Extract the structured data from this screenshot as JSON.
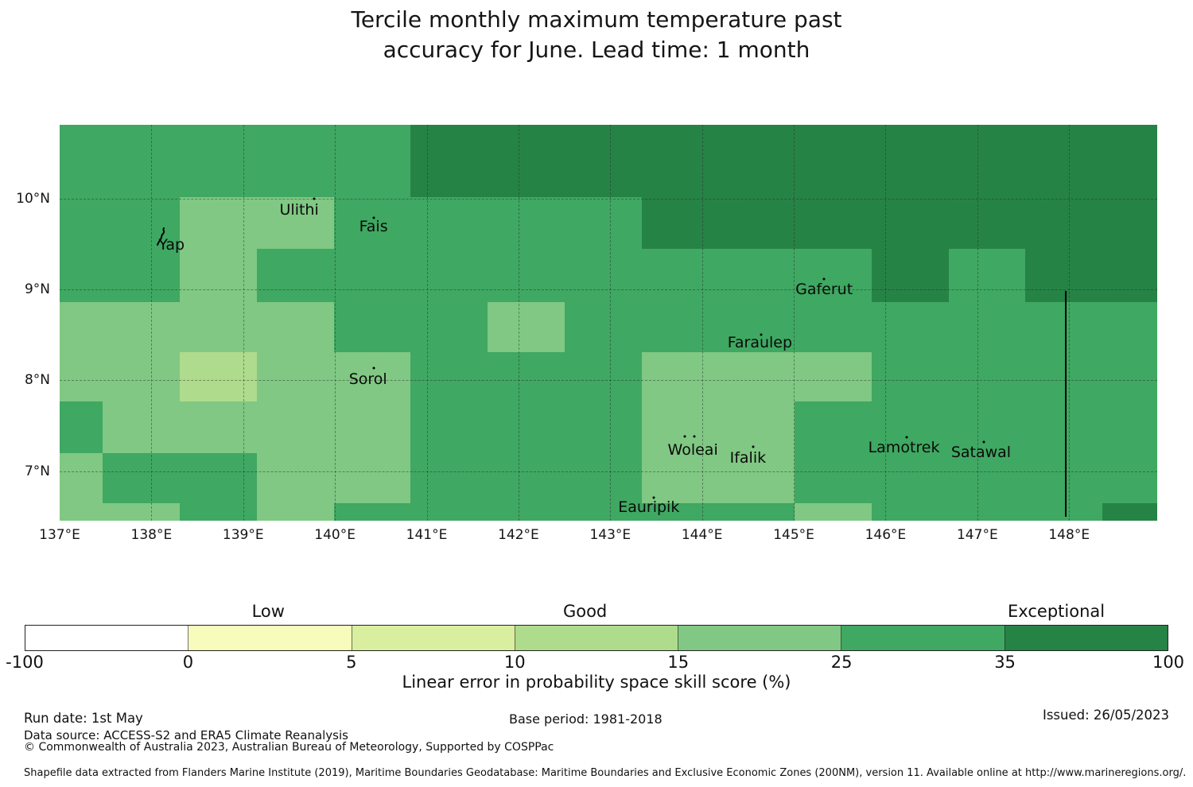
{
  "title": {
    "line1": "Tercile monthly maximum temperature past",
    "line2": "accuracy for June. Lead time: 1 month"
  },
  "chart_data": {
    "type": "heatmap",
    "title": "Tercile monthly maximum temperature past accuracy for June. Lead time: 1 month",
    "variable": "Linear error in probability space skill score (%)",
    "lon_range": [
      137.0,
      148.96
    ],
    "lat_range": [
      6.455,
      10.81
    ],
    "x_ticks": [
      {
        "label": "137°E",
        "lon": 137
      },
      {
        "label": "138°E",
        "lon": 138
      },
      {
        "label": "139°E",
        "lon": 139
      },
      {
        "label": "140°E",
        "lon": 140
      },
      {
        "label": "141°E",
        "lon": 141
      },
      {
        "label": "142°E",
        "lon": 142
      },
      {
        "label": "143°E",
        "lon": 143
      },
      {
        "label": "144°E",
        "lon": 144
      },
      {
        "label": "145°E",
        "lon": 145
      },
      {
        "label": "146°E",
        "lon": 146
      },
      {
        "label": "147°E",
        "lon": 147
      },
      {
        "label": "148°E",
        "lon": 148
      }
    ],
    "y_ticks": [
      {
        "label": "10°N",
        "lat": 10
      },
      {
        "label": "9°N",
        "lat": 9
      },
      {
        "label": "8°N",
        "lat": 8
      },
      {
        "label": "7°N",
        "lat": 7
      }
    ],
    "lon_gridlines": [
      138,
      139,
      140,
      141,
      142,
      143,
      144,
      145,
      146,
      147,
      148
    ],
    "lat_gridlines": [
      7,
      8,
      9,
      10
    ],
    "col_bounds_lon": [
      137.0,
      137.47,
      138.31,
      139.15,
      139.99,
      140.82,
      141.66,
      142.5,
      143.34,
      144.17,
      145.01,
      145.85,
      146.69,
      147.52,
      148.36,
      148.96
    ],
    "row_bounds_lat": [
      10.81,
      10.015,
      9.446,
      8.86,
      8.31,
      7.767,
      7.199,
      6.648,
      6.455
    ],
    "color_key": {
      "P": "#afdb8d",
      "L": "#80c883",
      "M": "#3fa862",
      "D": "#268346"
    },
    "color_key_meaning": {
      "P": "10-15",
      "L": "15-25",
      "M": "25-35",
      "D": "35-100"
    },
    "cells_by_row": [
      "MMMMMDDDDDDDDDD",
      "MMLLMMMMDDDDDDD",
      "MMLMMMMMMMMDMDD",
      "LLLLMMLMMMMMMMM",
      "LLPLLMMMLLLMMMM",
      "MLLLLMMMLLMMMMM",
      "LMMLLMMMLLMMMMM",
      "LLMLMMMMMMLMMMD"
    ],
    "places": [
      {
        "name": "Yap",
        "lon": 138.22,
        "lat": 9.49,
        "marker": "island",
        "dots": []
      },
      {
        "name": "Ulithi",
        "lon": 139.61,
        "lat": 9.87,
        "dots": [
          [
            139.77,
            10.0
          ]
        ]
      },
      {
        "name": "Fais",
        "lon": 140.42,
        "lat": 9.69,
        "dots": [
          [
            140.42,
            9.79
          ]
        ]
      },
      {
        "name": "Sorol",
        "lon": 140.36,
        "lat": 8.01,
        "dots": [
          [
            140.42,
            8.13
          ]
        ]
      },
      {
        "name": "Gaferut",
        "lon": 145.33,
        "lat": 9.0,
        "dots": [
          [
            145.33,
            9.11
          ]
        ]
      },
      {
        "name": "Faraulep",
        "lon": 144.63,
        "lat": 8.41,
        "dots": [
          [
            144.64,
            8.5
          ]
        ]
      },
      {
        "name": "Woleai",
        "lon": 143.9,
        "lat": 7.23,
        "dots": [
          [
            143.81,
            7.38
          ],
          [
            143.92,
            7.38
          ]
        ]
      },
      {
        "name": "Ifalik",
        "lon": 144.5,
        "lat": 7.15,
        "dots": [
          [
            144.56,
            7.27
          ]
        ]
      },
      {
        "name": "Lamotrek",
        "lon": 146.2,
        "lat": 7.26,
        "dots": [
          [
            146.23,
            7.37
          ]
        ]
      },
      {
        "name": "Satawal",
        "lon": 147.04,
        "lat": 7.21,
        "dots": [
          [
            147.07,
            7.32
          ]
        ]
      },
      {
        "name": "Eauripik",
        "lon": 143.42,
        "lat": 6.6,
        "dots": [
          [
            143.47,
            6.71
          ]
        ]
      }
    ],
    "eez_line": {
      "lon": 147.96,
      "lat_from": 8.98,
      "lat_to": 6.5
    }
  },
  "colorbar": {
    "categories": [
      {
        "label": "Low",
        "pos_pct": 21.3
      },
      {
        "label": "Good",
        "pos_pct": 49.0
      },
      {
        "label": "Exceptional",
        "pos_pct": 90.2
      }
    ],
    "segments": [
      {
        "range": "-100 to 0",
        "color": "#ffffff"
      },
      {
        "range": "0 to 5",
        "color": "#f7fbbb"
      },
      {
        "range": "5 to 10",
        "color": "#d9ee9f"
      },
      {
        "range": "10 to 15",
        "color": "#afdb8d"
      },
      {
        "range": "15 to 25",
        "color": "#80c883"
      },
      {
        "range": "25 to 35",
        "color": "#3fa862"
      },
      {
        "range": "35 to 100",
        "color": "#268346"
      }
    ],
    "tick_labels": [
      "-100",
      "0",
      "5",
      "10",
      "15",
      "25",
      "35",
      "100"
    ],
    "caption": "Linear error in probability space skill score (%)"
  },
  "footer": {
    "run_date": "Run date: 1st May",
    "base_period": "Base period: 1981-2018",
    "issued": "Issued: 26/05/2023",
    "data_source": "Data source: ACCESS-S2 and ERA5 Climate Reanalysis",
    "copyright": "© Commonwealth of Australia 2023, Australian Bureau of Meteorology, Supported by COSPPac",
    "shapefile_note": "Shapefile data extracted from Flanders Marine Institute (2019), Maritime Boundaries Geodatabase: Maritime Boundaries and Exclusive Economic Zones (200NM), version 11. Available online at http://www.marineregions.org/."
  }
}
